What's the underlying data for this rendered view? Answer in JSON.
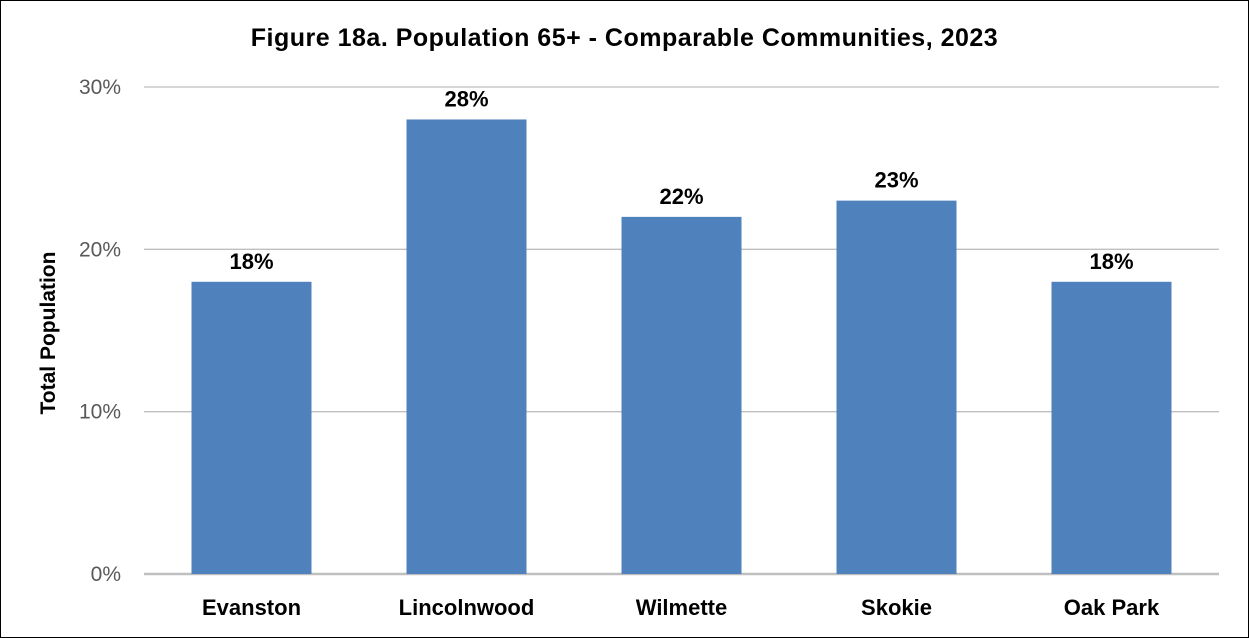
{
  "chart_data": {
    "type": "bar",
    "title": "Figure 18a. Population 65+ - Comparable Communities, 2023",
    "xlabel": "",
    "ylabel": "Total Population",
    "categories": [
      "Evanston",
      "Lincolnwood",
      "Wilmette",
      "Skokie",
      "Oak Park"
    ],
    "values": [
      18,
      28,
      22,
      23,
      18
    ],
    "data_labels": [
      "18%",
      "28%",
      "22%",
      "23%",
      "18%"
    ],
    "ylim": [
      0,
      30
    ],
    "yticks": [
      0,
      10,
      20,
      30
    ],
    "ytick_labels": [
      "0%",
      "10%",
      "20%",
      "30%"
    ],
    "grid": true,
    "legend": "none",
    "colors": {
      "bar": "#4F81BD",
      "grid": "#BFBFBF",
      "axis": "#BFBFBF",
      "tick_text": "#595959"
    }
  }
}
